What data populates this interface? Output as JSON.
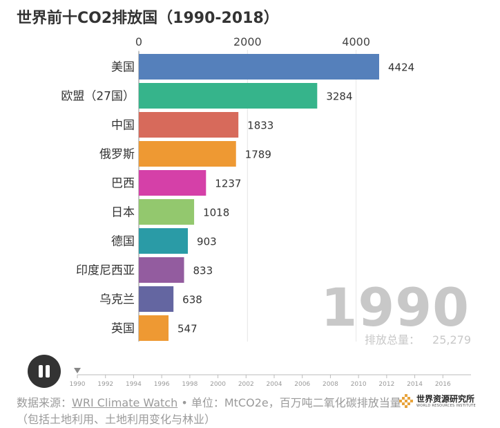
{
  "title": "世界前十CO2排放国（1990-2018）",
  "chart_data": {
    "type": "bar",
    "orientation": "horizontal",
    "title": "世界前十CO2排放国（1990-2018）",
    "year": "1990",
    "categories": [
      "美国",
      "欧盟（27国）",
      "中国",
      "俄罗斯",
      "巴西",
      "日本",
      "德国",
      "印度尼西亚",
      "乌克兰",
      "英国"
    ],
    "values": [
      4424,
      3284,
      1833,
      1789,
      1237,
      1018,
      903,
      833,
      638,
      547
    ],
    "value_labels": [
      "4424",
      "3284",
      "1833",
      "1789",
      "1237",
      "1018",
      "903",
      "833",
      "638",
      "547"
    ],
    "colors": [
      "#5580bb",
      "#36b48b",
      "#d76a5b",
      "#ee9933",
      "#d540a8",
      "#93c86e",
      "#2a9ba6",
      "#935c9f",
      "#6466a1",
      "#ee9933"
    ],
    "x_ticks": [
      0,
      2000,
      4000
    ],
    "x_tick_labels": [
      "0",
      "2000",
      "4000"
    ],
    "xlim": [
      0,
      4424
    ],
    "grid": true,
    "total_label": "排放总量：",
    "total_value": "25,279",
    "timeline": {
      "start": 1990,
      "end": 2018,
      "current": 1990,
      "ticks": [
        1990,
        1992,
        1994,
        1996,
        1998,
        2000,
        2002,
        2004,
        2006,
        2008,
        2010,
        2012,
        2014,
        2016
      ],
      "labels": [
        "1990",
        "1992",
        "1994",
        "1996",
        "1998",
        "2000",
        "2002",
        "2004",
        "2006",
        "2008",
        "2010",
        "2012",
        "2014",
        "2016"
      ]
    }
  },
  "footer": {
    "source_prefix": "数据来源：",
    "source_link": "WRI Climate Watch",
    "separator": " • ",
    "unit_text": "单位：MtCO2e，百万吨二氧化碳排放当量（包括土地利用、土地利用变化与林业）"
  },
  "logo": {
    "name_cn": "世界资源研究所",
    "name_en": "WORLD RESOURCES INSTITUTE"
  },
  "controls": {
    "play_state": "paused"
  },
  "colors": {
    "title": "#333333",
    "year_watermark": "#c8c8c8",
    "grid": "#e6e6e6",
    "footer": "#9a9a9a",
    "logo_accent": "#e8a33b"
  }
}
